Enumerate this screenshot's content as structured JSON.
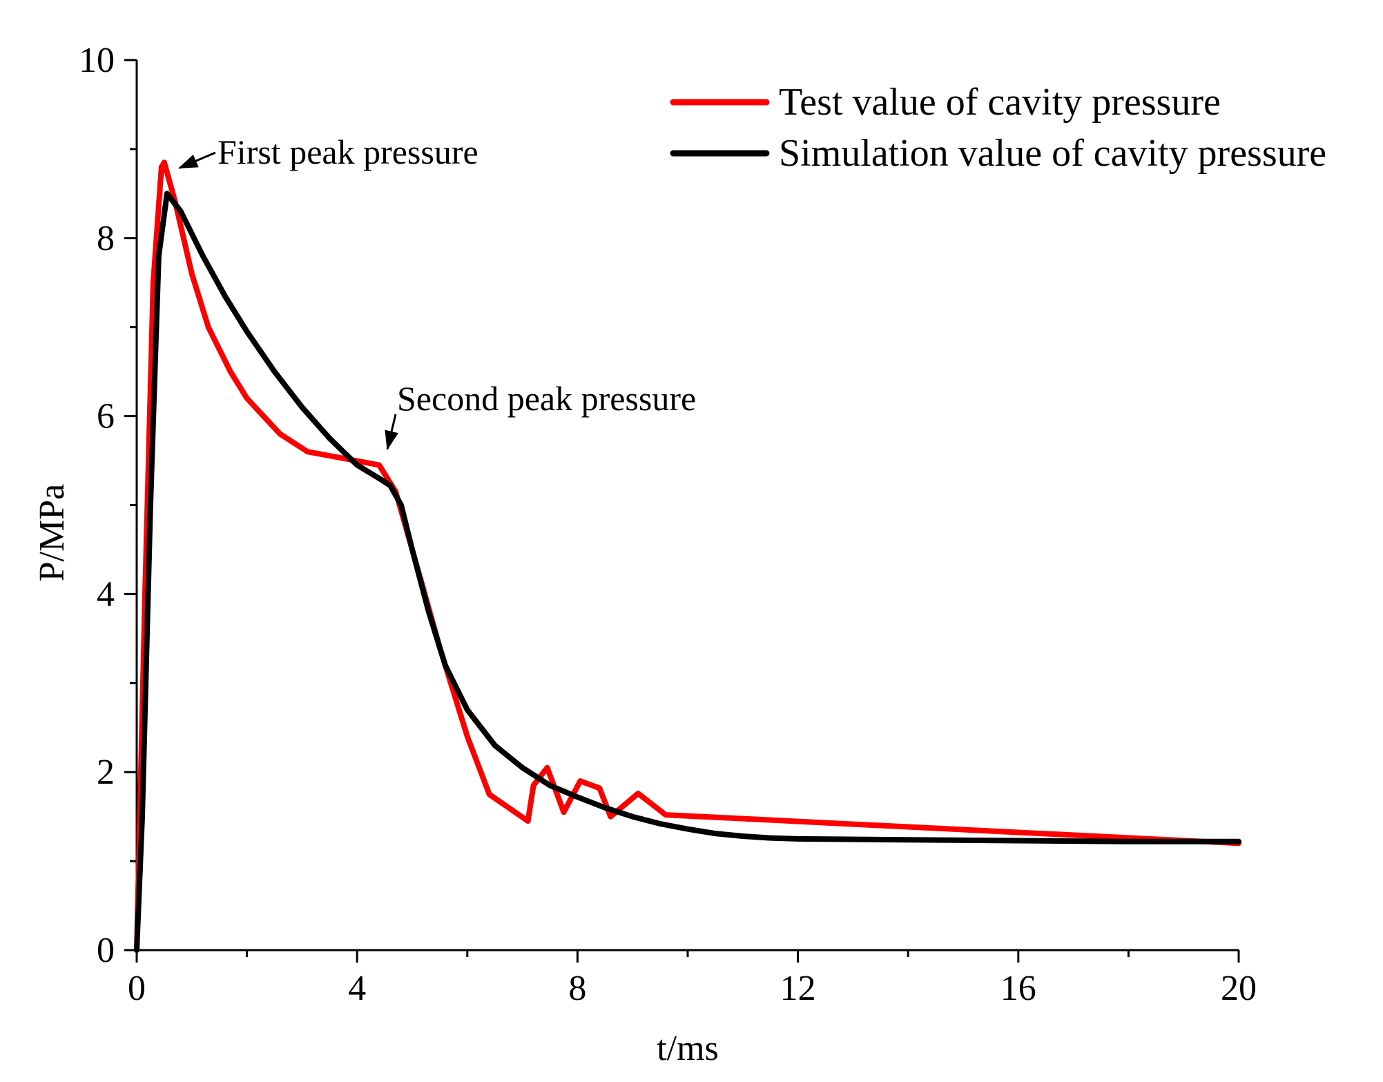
{
  "chart_data": {
    "type": "line",
    "title": "",
    "xlabel": "t/ms",
    "ylabel": "P/MPa",
    "xlim": [
      0,
      20
    ],
    "ylim": [
      0,
      10
    ],
    "xticks": [
      0,
      4,
      8,
      12,
      16,
      20
    ],
    "yticks": [
      0,
      2,
      4,
      6,
      8,
      10
    ],
    "xtick_labels": [
      "0",
      "4",
      "8",
      "12",
      "16",
      "20"
    ],
    "ytick_labels": [
      "0",
      "2",
      "4",
      "6",
      "8",
      "10"
    ],
    "x_minor_step": 2,
    "y_minor_step": 1,
    "grid": false,
    "legend_position": "top-right",
    "series": [
      {
        "name": "Test value of cavity pressure",
        "color": "#ff0000",
        "x": [
          0,
          0.15,
          0.3,
          0.45,
          0.5,
          0.7,
          1.0,
          1.3,
          1.7,
          2.0,
          2.6,
          3.1,
          3.8,
          4.4,
          4.7,
          5.0,
          5.5,
          6.0,
          6.4,
          7.1,
          7.2,
          7.45,
          7.75,
          8.05,
          8.4,
          8.6,
          9.1,
          9.6,
          20.0
        ],
        "y": [
          0,
          4.0,
          7.5,
          8.8,
          8.85,
          8.4,
          7.6,
          7.0,
          6.5,
          6.2,
          5.8,
          5.6,
          5.52,
          5.45,
          5.15,
          4.5,
          3.4,
          2.4,
          1.75,
          1.45,
          1.85,
          2.05,
          1.55,
          1.9,
          1.82,
          1.5,
          1.76,
          1.52,
          1.2
        ]
      },
      {
        "name": "Simulation value of cavity pressure",
        "color": "#000000",
        "x": [
          0,
          0.1,
          0.25,
          0.4,
          0.55,
          0.8,
          1.2,
          1.6,
          2.0,
          2.5,
          3.0,
          3.5,
          4.0,
          4.4,
          4.6,
          4.8,
          5.0,
          5.3,
          5.6,
          6.0,
          6.5,
          7.0,
          7.5,
          8.0,
          8.5,
          9.0,
          9.5,
          10.0,
          10.5,
          11.0,
          11.5,
          12.0,
          14.0,
          16.0,
          18.0,
          20.0
        ],
        "y": [
          0,
          1.5,
          5.0,
          7.8,
          8.5,
          8.3,
          7.8,
          7.35,
          6.95,
          6.5,
          6.1,
          5.75,
          5.45,
          5.3,
          5.22,
          5.0,
          4.5,
          3.8,
          3.2,
          2.7,
          2.3,
          2.05,
          1.85,
          1.72,
          1.6,
          1.5,
          1.42,
          1.36,
          1.31,
          1.28,
          1.26,
          1.25,
          1.24,
          1.23,
          1.22,
          1.22
        ]
      }
    ],
    "annotations": [
      {
        "text": "First peak pressure",
        "target_x": 0.55,
        "target_y": 8.85
      },
      {
        "text": "Second peak pressure",
        "target_x": 4.55,
        "target_y": 5.6
      }
    ]
  }
}
